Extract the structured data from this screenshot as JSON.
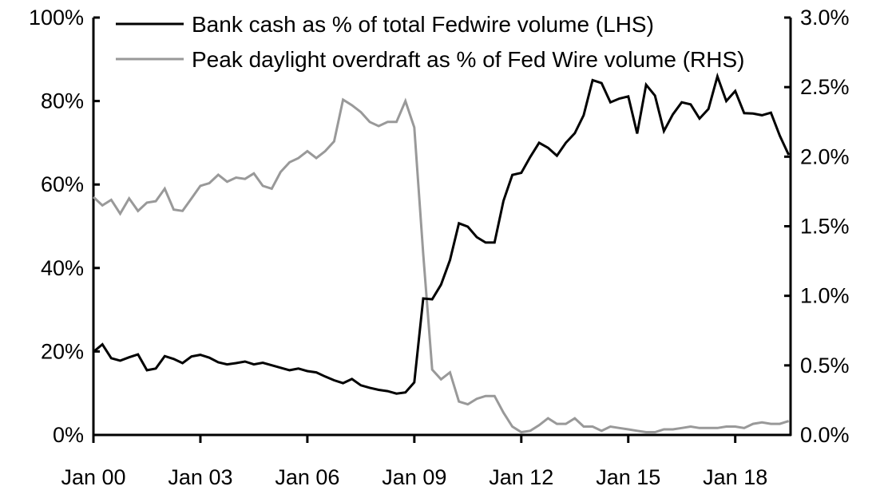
{
  "chart_data": {
    "type": "line",
    "title": "",
    "xlabel": "",
    "ylabel_left": "",
    "ylabel_right": "",
    "x_ticks": [
      "Jan 00",
      "Jan 03",
      "Jan 06",
      "Jan 09",
      "Jan 12",
      "Jan 15",
      "Jan 18"
    ],
    "x_tick_years": [
      2000,
      2003,
      2006,
      2009,
      2012,
      2015,
      2018
    ],
    "y_left": {
      "range": [
        0,
        100
      ],
      "ticks": [
        0,
        20,
        40,
        60,
        80,
        100
      ],
      "tick_labels": [
        "0%",
        "20%",
        "40%",
        "60%",
        "80%",
        "100%"
      ]
    },
    "y_right": {
      "range": [
        0,
        3.0
      ],
      "ticks": [
        0,
        0.5,
        1.0,
        1.5,
        2.0,
        2.5,
        3.0
      ],
      "tick_labels": [
        "0.0%",
        "0.5%",
        "1.0%",
        "1.5%",
        "2.0%",
        "2.5%",
        "3.0%"
      ]
    },
    "grid": false,
    "legend_placement": "top",
    "x": [
      "2000Q1",
      "2000Q2",
      "2000Q3",
      "2000Q4",
      "2001Q1",
      "2001Q2",
      "2001Q3",
      "2001Q4",
      "2002Q1",
      "2002Q2",
      "2002Q3",
      "2002Q4",
      "2003Q1",
      "2003Q2",
      "2003Q3",
      "2003Q4",
      "2004Q1",
      "2004Q2",
      "2004Q3",
      "2004Q4",
      "2005Q1",
      "2005Q2",
      "2005Q3",
      "2005Q4",
      "2006Q1",
      "2006Q2",
      "2006Q3",
      "2006Q4",
      "2007Q1",
      "2007Q2",
      "2007Q3",
      "2007Q4",
      "2008Q1",
      "2008Q2",
      "2008Q3",
      "2008Q4",
      "2009Q1",
      "2009Q2",
      "2009Q3",
      "2009Q4",
      "2010Q1",
      "2010Q2",
      "2010Q3",
      "2010Q4",
      "2011Q1",
      "2011Q2",
      "2011Q3",
      "2011Q4",
      "2012Q1",
      "2012Q2",
      "2012Q3",
      "2012Q4",
      "2013Q1",
      "2013Q2",
      "2013Q3",
      "2013Q4",
      "2014Q1",
      "2014Q2",
      "2014Q3",
      "2014Q4",
      "2015Q1",
      "2015Q2",
      "2015Q3",
      "2015Q4",
      "2016Q1",
      "2016Q2",
      "2016Q3",
      "2016Q4",
      "2017Q1",
      "2017Q2",
      "2017Q3",
      "2017Q4",
      "2018Q1",
      "2018Q2",
      "2018Q3",
      "2018Q4",
      "2019Q1",
      "2019Q2",
      "2019Q3"
    ],
    "series": [
      {
        "name": "Bank cash as % of total Fedwire volume (LHS)",
        "axis": "left",
        "color": "#000000",
        "values": [
          19.9,
          21.7,
          18.4,
          17.8,
          18.6,
          19.3,
          15.5,
          15.9,
          18.9,
          18.2,
          17.2,
          18.8,
          19.2,
          18.5,
          17.4,
          16.9,
          17.2,
          17.6,
          16.9,
          17.3,
          16.7,
          16.1,
          15.5,
          15.9,
          15.3,
          15.0,
          14.0,
          13.1,
          12.4,
          13.4,
          11.9,
          11.3,
          10.8,
          10.5,
          9.9,
          10.2,
          12.6,
          32.7,
          32.5,
          36.0,
          41.9,
          50.7,
          49.9,
          47.4,
          46.1,
          46.1,
          56.1,
          62.3,
          62.8,
          66.6,
          70.0,
          68.8,
          66.9,
          70.0,
          72.3,
          76.6,
          85.0,
          84.3,
          79.7,
          80.6,
          81.1,
          72.2,
          83.9,
          81.3,
          72.8,
          76.8,
          79.7,
          79.2,
          75.8,
          78.1,
          85.9,
          80.0,
          82.4,
          77.1,
          77.0,
          76.6,
          77.2,
          71.7,
          67.1
        ]
      },
      {
        "name": "Peak daylight overdraft as % of Fed Wire volume (RHS)",
        "axis": "right",
        "color": "#999999",
        "values": [
          1.71,
          1.65,
          1.69,
          1.59,
          1.7,
          1.61,
          1.67,
          1.68,
          1.77,
          1.62,
          1.61,
          1.7,
          1.79,
          1.81,
          1.87,
          1.82,
          1.85,
          1.84,
          1.88,
          1.79,
          1.77,
          1.89,
          1.96,
          1.99,
          2.04,
          1.99,
          2.04,
          2.11,
          2.41,
          2.37,
          2.32,
          2.25,
          2.22,
          2.25,
          2.25,
          2.4,
          2.21,
          1.3,
          0.47,
          0.4,
          0.45,
          0.24,
          0.22,
          0.26,
          0.28,
          0.28,
          0.16,
          0.06,
          0.02,
          0.03,
          0.07,
          0.12,
          0.08,
          0.08,
          0.12,
          0.06,
          0.06,
          0.03,
          0.06,
          0.05,
          0.04,
          0.03,
          0.02,
          0.02,
          0.04,
          0.04,
          0.05,
          0.06,
          0.05,
          0.05,
          0.05,
          0.06,
          0.06,
          0.05,
          0.08,
          0.09,
          0.08,
          0.08,
          0.1
        ]
      }
    ]
  }
}
